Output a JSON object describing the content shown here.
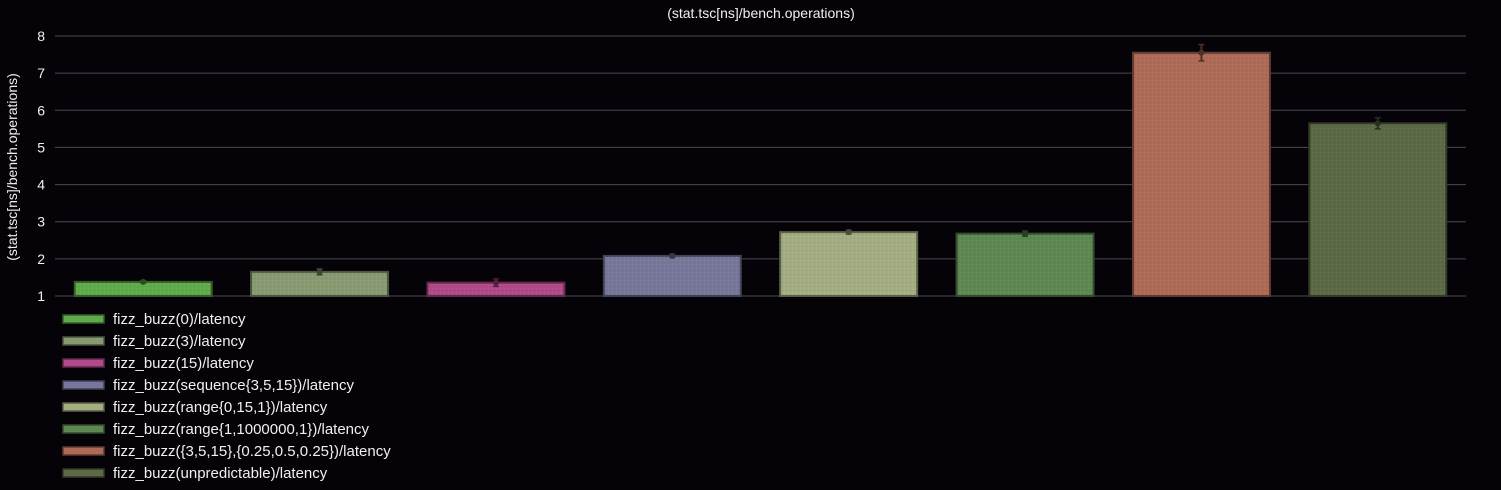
{
  "chart_data": {
    "type": "bar",
    "title": "(stat.tsc[ns]/bench.operations)",
    "ylabel": "(stat.tsc[ns]/bench.operations)",
    "xlabel": "",
    "ylim": [
      1,
      8
    ],
    "yticks": [
      1,
      2,
      3,
      4,
      5,
      6,
      7,
      8
    ],
    "grid": true,
    "legend_position": "bottom-left",
    "series": [
      {
        "name": "fizz_buzz(0)/latency",
        "value": 1.38,
        "error": 0.03,
        "color": "#5faa4a"
      },
      {
        "name": "fizz_buzz(3)/latency",
        "value": 1.65,
        "error": 0.08,
        "color": "#889a72"
      },
      {
        "name": "fizz_buzz(15)/latency",
        "value": 1.36,
        "error": 0.1,
        "color": "#b04a88"
      },
      {
        "name": "fizz_buzz(sequence{3,5,15})/latency",
        "value": 2.08,
        "error": 0.04,
        "color": "#77779a"
      },
      {
        "name": "fizz_buzz(range{0,15,1})/latency",
        "value": 2.72,
        "error": 0.05,
        "color": "#a3ad82"
      },
      {
        "name": "fizz_buzz(range{1,1000000,1})/latency",
        "value": 2.68,
        "error": 0.07,
        "color": "#5d8852"
      },
      {
        "name": "fizz_buzz({3,5,15},{0.25,0.5,0.25})/latency",
        "value": 7.55,
        "error": 0.22,
        "color": "#ad6a56"
      },
      {
        "name": "fizz_buzz(unpredictable)/latency",
        "value": 5.65,
        "error": 0.15,
        "color": "#5b6946"
      }
    ]
  }
}
